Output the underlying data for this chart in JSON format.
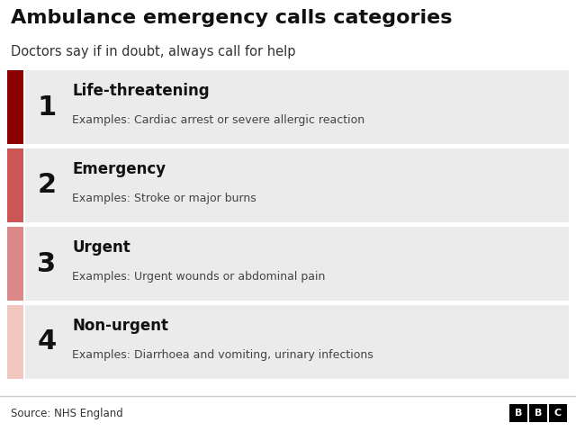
{
  "title": "Ambulance emergency calls categories",
  "subtitle": "Doctors say if in doubt, always call for help",
  "source": "Source: NHS England",
  "bg_color": "#ffffff",
  "row_bg_color": "#ebebeb",
  "row_gap_color": "#ffffff",
  "categories": [
    {
      "number": "1",
      "label": "Life-threatening",
      "example": "Examples: Cardiac arrest or severe allergic reaction",
      "bar_color": "#8b0000"
    },
    {
      "number": "2",
      "label": "Emergency",
      "example": "Examples: Stroke or major burns",
      "bar_color": "#cc5555"
    },
    {
      "number": "3",
      "label": "Urgent",
      "example": "Examples: Urgent wounds or abdominal pain",
      "bar_color": "#dd8888"
    },
    {
      "number": "4",
      "label": "Non-urgent",
      "example": "Examples: Diarrhoea and vomiting, urinary infections",
      "bar_color": "#f0c8c0"
    }
  ],
  "title_fontsize": 16,
  "subtitle_fontsize": 10.5,
  "number_fontsize": 22,
  "label_fontsize": 12,
  "example_fontsize": 9,
  "source_fontsize": 8.5
}
